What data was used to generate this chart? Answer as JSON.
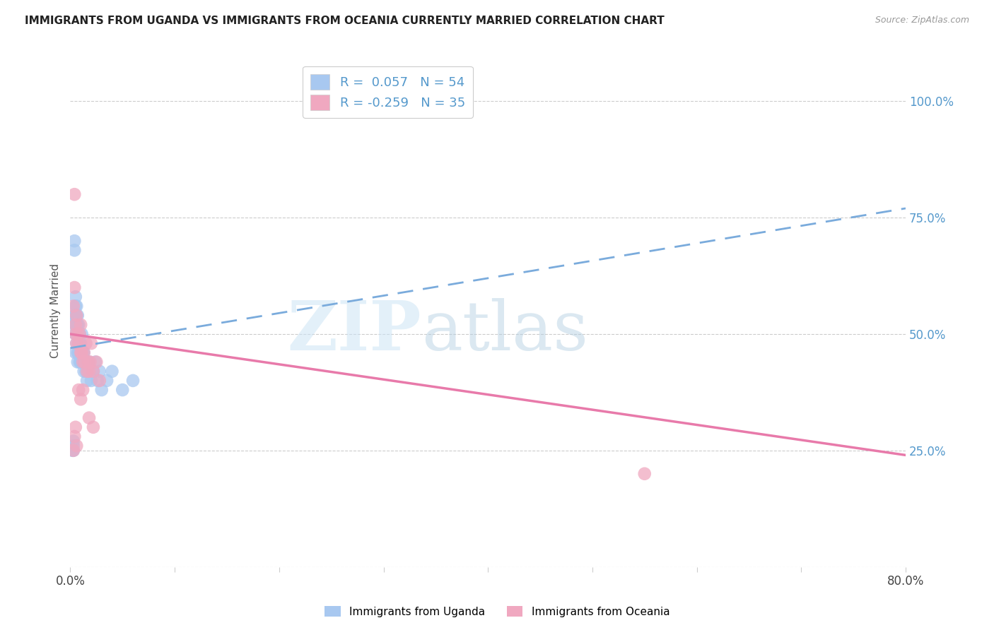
{
  "title": "IMMIGRANTS FROM UGANDA VS IMMIGRANTS FROM OCEANIA CURRENTLY MARRIED CORRELATION CHART",
  "source": "Source: ZipAtlas.com",
  "ylabel": "Currently Married",
  "xlim": [
    0.0,
    0.8
  ],
  "ylim": [
    0.0,
    1.1
  ],
  "r_uganda": 0.057,
  "n_uganda": 54,
  "r_oceania": -0.259,
  "n_oceania": 35,
  "color_uganda": "#a8c8f0",
  "color_oceania": "#f0a8c0",
  "line_color_uganda": "#7aabdc",
  "line_color_oceania": "#e87aaa",
  "uganda_x": [
    0.002,
    0.003,
    0.003,
    0.003,
    0.004,
    0.004,
    0.004,
    0.004,
    0.005,
    0.005,
    0.005,
    0.005,
    0.005,
    0.005,
    0.006,
    0.006,
    0.006,
    0.006,
    0.006,
    0.007,
    0.007,
    0.007,
    0.007,
    0.007,
    0.008,
    0.008,
    0.008,
    0.008,
    0.009,
    0.009,
    0.009,
    0.01,
    0.01,
    0.01,
    0.011,
    0.011,
    0.012,
    0.013,
    0.013,
    0.014,
    0.015,
    0.016,
    0.017,
    0.018,
    0.02,
    0.022,
    0.024,
    0.026,
    0.028,
    0.03,
    0.035,
    0.04,
    0.05,
    0.06
  ],
  "uganda_y": [
    0.25,
    0.25,
    0.26,
    0.27,
    0.52,
    0.54,
    0.68,
    0.7,
    0.5,
    0.52,
    0.54,
    0.56,
    0.58,
    0.46,
    0.52,
    0.54,
    0.56,
    0.48,
    0.5,
    0.5,
    0.52,
    0.54,
    0.44,
    0.46,
    0.5,
    0.52,
    0.46,
    0.48,
    0.48,
    0.5,
    0.44,
    0.48,
    0.46,
    0.44,
    0.5,
    0.44,
    0.46,
    0.42,
    0.46,
    0.44,
    0.42,
    0.4,
    0.42,
    0.44,
    0.4,
    0.42,
    0.44,
    0.4,
    0.42,
    0.38,
    0.4,
    0.42,
    0.38,
    0.4
  ],
  "oceania_x": [
    0.003,
    0.004,
    0.004,
    0.005,
    0.005,
    0.006,
    0.006,
    0.007,
    0.008,
    0.009,
    0.01,
    0.01,
    0.011,
    0.012,
    0.013,
    0.014,
    0.015,
    0.016,
    0.017,
    0.018,
    0.019,
    0.02,
    0.022,
    0.025,
    0.028,
    0.003,
    0.004,
    0.005,
    0.006,
    0.008,
    0.01,
    0.012,
    0.018,
    0.022,
    0.55
  ],
  "oceania_y": [
    0.56,
    0.6,
    0.8,
    0.5,
    0.52,
    0.48,
    0.54,
    0.5,
    0.48,
    0.5,
    0.46,
    0.52,
    0.46,
    0.44,
    0.46,
    0.44,
    0.48,
    0.42,
    0.44,
    0.42,
    0.44,
    0.48,
    0.42,
    0.44,
    0.4,
    0.25,
    0.28,
    0.3,
    0.26,
    0.38,
    0.36,
    0.38,
    0.32,
    0.3,
    0.2
  ],
  "uganda_regline_x": [
    0.0,
    0.8
  ],
  "uganda_regline_y": [
    0.47,
    0.77
  ],
  "oceania_regline_x": [
    0.0,
    0.8
  ],
  "oceania_regline_y": [
    0.5,
    0.24
  ]
}
